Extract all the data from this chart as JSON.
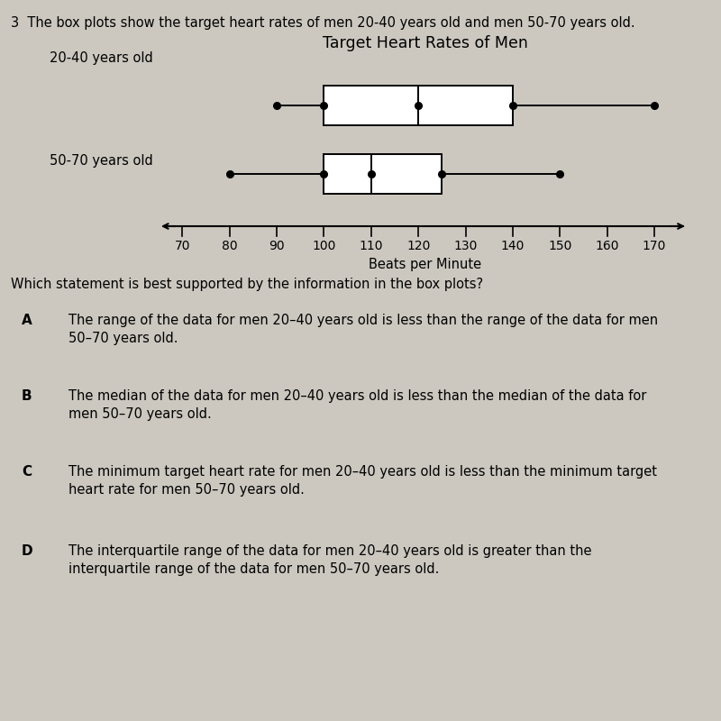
{
  "title": "Target Heart Rates of Men",
  "xlabel": "Beats per Minute",
  "question_text": "3  The box plots show the target heart rates of men 20-40 years old and men 50-70 years old.",
  "groups": [
    "20-40 years old",
    "50-70 years old"
  ],
  "box_stats": [
    {
      "min": 90,
      "q1": 100,
      "median": 120,
      "q3": 140,
      "max": 170
    },
    {
      "min": 80,
      "q1": 100,
      "median": 110,
      "q3": 125,
      "max": 150
    }
  ],
  "axis_min": 65,
  "axis_max": 178,
  "xticks": [
    70,
    80,
    90,
    100,
    110,
    120,
    130,
    140,
    150,
    160,
    170
  ],
  "bg_color": "#ccc8c0",
  "box_color": "#ffffff",
  "box_edgecolor": "#000000",
  "whisker_color": "#000000",
  "median_color": "#000000",
  "dot_color": "#000000",
  "question_fontsize": 10.5,
  "title_fontsize": 12.5,
  "label_fontsize": 10.5,
  "tick_fontsize": 10,
  "answer_label_fontsize": 11,
  "answer_text_fontsize": 10.5,
  "answer_texts": [
    {
      "label": "A",
      "text": "The range of the data for men 20–40 years old is less than the range of the data for men\n50–70 years old."
    },
    {
      "label": "B",
      "text": "The median of the data for men 20–40 years old is less than the median of the data for\nmen 50–70 years old."
    },
    {
      "label": "C",
      "text": "The minimum target heart rate for men 20–40 years old is less than the minimum target\nheart rate for men 50–70 years old."
    },
    {
      "label": "D",
      "text": "The interquartile range of the data for men 20–40 years old is greater than the\ninterquartile range of the data for men 50–70 years old."
    }
  ]
}
